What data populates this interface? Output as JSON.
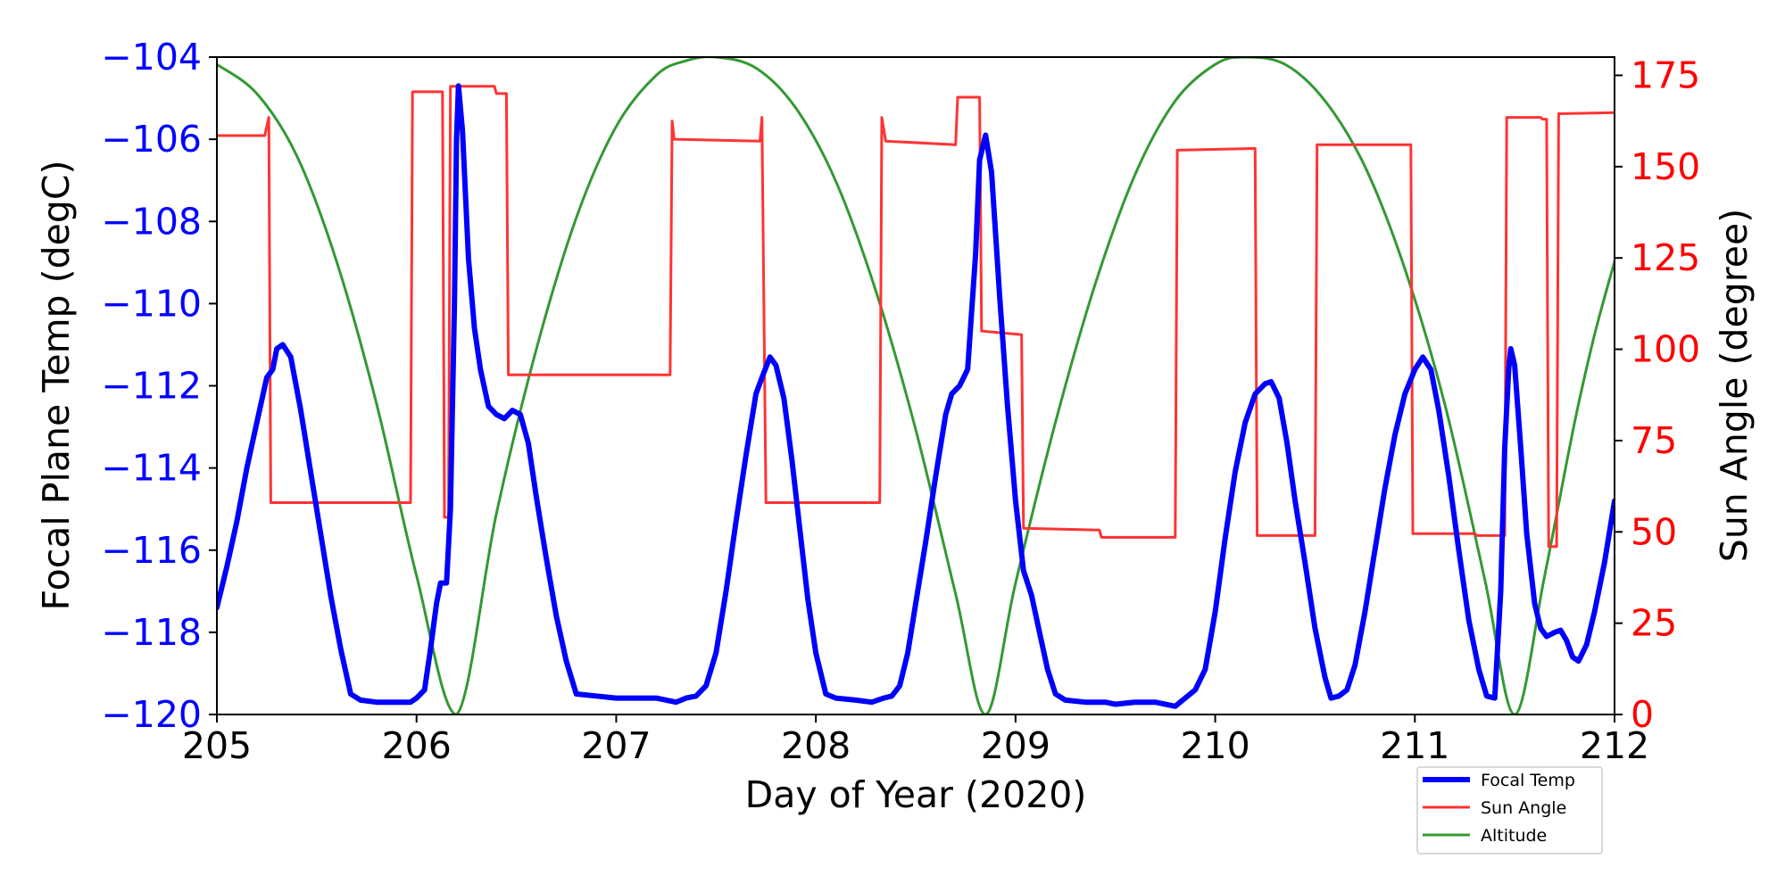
{
  "chart_data": {
    "type": "line",
    "xlabel": "Day of Year (2020)",
    "ylabel_left": "Focal Plane Temp (degC)",
    "ylabel_right": "Sun Angle (degree)",
    "xlim": [
      205,
      212
    ],
    "ylim_left": [
      -120,
      -104
    ],
    "ylim_right": [
      0,
      180
    ],
    "x_ticks": [
      "205",
      "206",
      "207",
      "208",
      "209",
      "210",
      "211",
      "212"
    ],
    "y_left_ticks": [
      "−104",
      "−106",
      "−108",
      "−110",
      "−112",
      "−114",
      "−116",
      "−118",
      "−120"
    ],
    "y_right_ticks": [
      "175",
      "150",
      "125",
      "100",
      "75",
      "50",
      "25",
      "0"
    ],
    "colors": {
      "focal_temp": "#0000ff",
      "sun_angle": "#ff3333",
      "altitude": "#339933",
      "left_axis": "#0000ff",
      "right_axis": "#ff0000"
    },
    "grid": false,
    "legend_position": "lower-right-outside",
    "legend": [
      "Focal Temp",
      "Sun Angle",
      "Altitude"
    ],
    "series": [
      {
        "name": "Focal Temp",
        "axis": "left",
        "points": [
          [
            205.0,
            -117.4
          ],
          [
            205.05,
            -116.4
          ],
          [
            205.1,
            -115.3
          ],
          [
            205.15,
            -114.0
          ],
          [
            205.2,
            -112.9
          ],
          [
            205.25,
            -111.8
          ],
          [
            205.28,
            -111.6
          ],
          [
            205.3,
            -111.1
          ],
          [
            205.33,
            -111.0
          ],
          [
            205.37,
            -111.3
          ],
          [
            205.42,
            -112.6
          ],
          [
            205.47,
            -114.1
          ],
          [
            205.52,
            -115.6
          ],
          [
            205.57,
            -117.1
          ],
          [
            205.62,
            -118.4
          ],
          [
            205.67,
            -119.5
          ],
          [
            205.72,
            -119.65
          ],
          [
            205.8,
            -119.7
          ],
          [
            205.9,
            -119.7
          ],
          [
            205.97,
            -119.7
          ],
          [
            206.0,
            -119.6
          ],
          [
            206.04,
            -119.4
          ],
          [
            206.07,
            -118.4
          ],
          [
            206.1,
            -117.3
          ],
          [
            206.12,
            -116.8
          ],
          [
            206.15,
            -116.8
          ],
          [
            206.17,
            -115.0
          ],
          [
            206.19,
            -110.0
          ],
          [
            206.2,
            -106.0
          ],
          [
            206.21,
            -104.7
          ],
          [
            206.23,
            -105.8
          ],
          [
            206.26,
            -108.9
          ],
          [
            206.29,
            -110.6
          ],
          [
            206.32,
            -111.6
          ],
          [
            206.36,
            -112.5
          ],
          [
            206.4,
            -112.7
          ],
          [
            206.44,
            -112.8
          ],
          [
            206.48,
            -112.6
          ],
          [
            206.52,
            -112.7
          ],
          [
            206.56,
            -113.4
          ],
          [
            206.6,
            -114.7
          ],
          [
            206.65,
            -116.2
          ],
          [
            206.7,
            -117.6
          ],
          [
            206.75,
            -118.7
          ],
          [
            206.8,
            -119.5
          ],
          [
            206.9,
            -119.55
          ],
          [
            207.0,
            -119.6
          ],
          [
            207.1,
            -119.6
          ],
          [
            207.2,
            -119.6
          ],
          [
            207.3,
            -119.7
          ],
          [
            207.35,
            -119.6
          ],
          [
            207.4,
            -119.55
          ],
          [
            207.45,
            -119.3
          ],
          [
            207.5,
            -118.5
          ],
          [
            207.55,
            -117.0
          ],
          [
            207.6,
            -115.3
          ],
          [
            207.65,
            -113.7
          ],
          [
            207.7,
            -112.2
          ],
          [
            207.73,
            -111.8
          ],
          [
            207.77,
            -111.3
          ],
          [
            207.8,
            -111.5
          ],
          [
            207.84,
            -112.3
          ],
          [
            207.88,
            -113.8
          ],
          [
            207.92,
            -115.5
          ],
          [
            207.96,
            -117.2
          ],
          [
            208.0,
            -118.5
          ],
          [
            208.05,
            -119.5
          ],
          [
            208.1,
            -119.6
          ],
          [
            208.2,
            -119.65
          ],
          [
            208.28,
            -119.7
          ],
          [
            208.34,
            -119.6
          ],
          [
            208.38,
            -119.55
          ],
          [
            208.42,
            -119.3
          ],
          [
            208.46,
            -118.5
          ],
          [
            208.5,
            -117.3
          ],
          [
            208.55,
            -115.8
          ],
          [
            208.6,
            -114.2
          ],
          [
            208.65,
            -112.7
          ],
          [
            208.68,
            -112.2
          ],
          [
            208.72,
            -112.0
          ],
          [
            208.76,
            -111.6
          ],
          [
            208.8,
            -108.8
          ],
          [
            208.82,
            -106.5
          ],
          [
            208.85,
            -105.9
          ],
          [
            208.88,
            -106.8
          ],
          [
            208.92,
            -109.8
          ],
          [
            208.96,
            -112.5
          ],
          [
            209.0,
            -114.8
          ],
          [
            209.04,
            -116.5
          ],
          [
            209.08,
            -117.1
          ],
          [
            209.12,
            -118.0
          ],
          [
            209.16,
            -118.9
          ],
          [
            209.2,
            -119.5
          ],
          [
            209.25,
            -119.65
          ],
          [
            209.35,
            -119.7
          ],
          [
            209.45,
            -119.7
          ],
          [
            209.5,
            -119.75
          ],
          [
            209.6,
            -119.7
          ],
          [
            209.7,
            -119.7
          ],
          [
            209.8,
            -119.8
          ],
          [
            209.85,
            -119.6
          ],
          [
            209.9,
            -119.4
          ],
          [
            209.95,
            -118.9
          ],
          [
            210.0,
            -117.5
          ],
          [
            210.05,
            -115.7
          ],
          [
            210.1,
            -114.1
          ],
          [
            210.15,
            -112.9
          ],
          [
            210.2,
            -112.2
          ],
          [
            210.25,
            -111.95
          ],
          [
            210.28,
            -111.9
          ],
          [
            210.32,
            -112.3
          ],
          [
            210.36,
            -113.4
          ],
          [
            210.4,
            -114.8
          ],
          [
            210.45,
            -116.3
          ],
          [
            210.5,
            -117.9
          ],
          [
            210.55,
            -119.1
          ],
          [
            210.58,
            -119.6
          ],
          [
            210.62,
            -119.55
          ],
          [
            210.66,
            -119.4
          ],
          [
            210.7,
            -118.8
          ],
          [
            210.75,
            -117.5
          ],
          [
            210.8,
            -116.0
          ],
          [
            210.85,
            -114.5
          ],
          [
            210.9,
            -113.2
          ],
          [
            210.95,
            -112.2
          ],
          [
            211.0,
            -111.6
          ],
          [
            211.04,
            -111.3
          ],
          [
            211.08,
            -111.6
          ],
          [
            211.12,
            -112.6
          ],
          [
            211.17,
            -114.2
          ],
          [
            211.22,
            -116.0
          ],
          [
            211.27,
            -117.7
          ],
          [
            211.32,
            -118.9
          ],
          [
            211.36,
            -119.55
          ],
          [
            211.4,
            -119.6
          ],
          [
            211.43,
            -117.0
          ],
          [
            211.45,
            -113.5
          ],
          [
            211.47,
            -111.6
          ],
          [
            211.48,
            -111.1
          ],
          [
            211.5,
            -111.5
          ],
          [
            211.53,
            -113.5
          ],
          [
            211.56,
            -115.6
          ],
          [
            211.6,
            -117.3
          ],
          [
            211.63,
            -117.9
          ],
          [
            211.66,
            -118.1
          ],
          [
            211.7,
            -118.0
          ],
          [
            211.73,
            -117.95
          ],
          [
            211.76,
            -118.2
          ],
          [
            211.79,
            -118.6
          ],
          [
            211.82,
            -118.7
          ],
          [
            211.86,
            -118.3
          ],
          [
            211.9,
            -117.5
          ],
          [
            211.95,
            -116.3
          ],
          [
            212.0,
            -114.8
          ]
        ]
      },
      {
        "name": "Sun Angle",
        "axis": "right",
        "points": [
          [
            205.0,
            158.5
          ],
          [
            205.24,
            158.5
          ],
          [
            205.25,
            161.0
          ],
          [
            205.26,
            163.5
          ],
          [
            205.27,
            58.0
          ],
          [
            205.97,
            58.0
          ],
          [
            205.98,
            170.5
          ],
          [
            206.13,
            170.5
          ],
          [
            206.14,
            54.0
          ],
          [
            206.16,
            54.0
          ],
          [
            206.17,
            172.0
          ],
          [
            206.39,
            172.0
          ],
          [
            206.4,
            170.0
          ],
          [
            206.45,
            170.0
          ],
          [
            206.46,
            93.0
          ],
          [
            207.27,
            93.0
          ],
          [
            207.28,
            162.5
          ],
          [
            207.29,
            157.5
          ],
          [
            207.72,
            157.0
          ],
          [
            207.73,
            163.5
          ],
          [
            207.75,
            58.0
          ],
          [
            208.32,
            58.0
          ],
          [
            208.33,
            163.5
          ],
          [
            208.35,
            157.0
          ],
          [
            208.7,
            156.0
          ],
          [
            208.71,
            169.0
          ],
          [
            208.82,
            169.0
          ],
          [
            208.83,
            105.0
          ],
          [
            209.03,
            104.0
          ],
          [
            209.04,
            51.0
          ],
          [
            209.42,
            50.5
          ],
          [
            209.43,
            48.5
          ],
          [
            209.8,
            48.5
          ],
          [
            209.81,
            154.5
          ],
          [
            210.2,
            155.0
          ],
          [
            210.21,
            49.0
          ],
          [
            210.5,
            49.0
          ],
          [
            210.51,
            156.0
          ],
          [
            210.98,
            156.0
          ],
          [
            210.99,
            49.5
          ],
          [
            211.3,
            49.5
          ],
          [
            211.31,
            49.0
          ],
          [
            211.45,
            49.0
          ],
          [
            211.46,
            163.5
          ],
          [
            211.63,
            163.5
          ],
          [
            211.64,
            163.0
          ],
          [
            211.66,
            163.0
          ],
          [
            211.67,
            46.0
          ],
          [
            211.71,
            46.0
          ],
          [
            211.72,
            164.5
          ],
          [
            212.0,
            164.8
          ]
        ]
      },
      {
        "name": "Altitude",
        "axis": "right",
        "points": [
          [
            205.0,
            178.0
          ],
          [
            205.2,
            170.0
          ],
          [
            205.4,
            153.0
          ],
          [
            205.6,
            124.0
          ],
          [
            205.8,
            85.0
          ],
          [
            206.0,
            38.0
          ],
          [
            206.2,
            0.0
          ],
          [
            206.4,
            55.0
          ],
          [
            206.6,
            100.0
          ],
          [
            206.8,
            136.0
          ],
          [
            207.0,
            161.0
          ],
          [
            207.2,
            175.0
          ],
          [
            207.35,
            179.0
          ],
          [
            207.5,
            180.0
          ],
          [
            207.7,
            177.0
          ],
          [
            207.9,
            166.0
          ],
          [
            208.1,
            146.0
          ],
          [
            208.3,
            116.0
          ],
          [
            208.5,
            78.0
          ],
          [
            208.7,
            33.0
          ],
          [
            208.85,
            0.0
          ],
          [
            209.0,
            36.0
          ],
          [
            209.2,
            80.0
          ],
          [
            209.4,
            118.0
          ],
          [
            209.6,
            148.0
          ],
          [
            209.8,
            168.0
          ],
          [
            210.0,
            178.0
          ],
          [
            210.15,
            180.0
          ],
          [
            210.35,
            178.0
          ],
          [
            210.55,
            168.0
          ],
          [
            210.75,
            150.0
          ],
          [
            210.95,
            122.0
          ],
          [
            211.15,
            85.0
          ],
          [
            211.35,
            37.0
          ],
          [
            211.5,
            0.0
          ],
          [
            211.65,
            38.0
          ],
          [
            211.8,
            80.0
          ],
          [
            211.9,
            104.0
          ],
          [
            212.0,
            124.0
          ]
        ]
      }
    ]
  }
}
